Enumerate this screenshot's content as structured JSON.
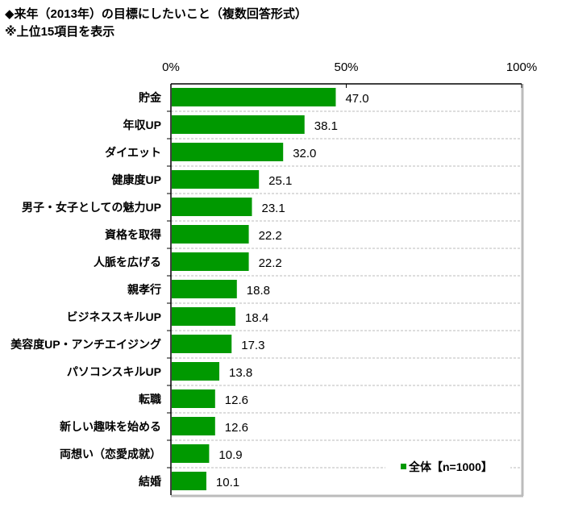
{
  "chart_data": {
    "type": "bar",
    "orientation": "horizontal",
    "title": "◆来年（2013年）の目標にしたいこと（複数回答形式）",
    "subtitle": "※上位15項目を表示",
    "xlabel": "",
    "ylabel": "",
    "xlim": [
      0,
      100
    ],
    "x_ticks": [
      "0%",
      "50%",
      "100%"
    ],
    "grid": "dashed horizontal separators",
    "legend": {
      "label": "全体【n=1000】",
      "position": "bottom-right"
    },
    "categories": [
      "貯金",
      "年収UP",
      "ダイエット",
      "健康度UP",
      "男子・女子としての魅力UP",
      "資格を取得",
      "人脈を広げる",
      "親孝行",
      "ビジネススキルUP",
      "美容度UP・アンチエイジング",
      "パソコンスキルUP",
      "転職",
      "新しい趣味を始める",
      "両想い（恋愛成就）",
      "結婚"
    ],
    "series": [
      {
        "name": "全体【n=1000】",
        "color": "#009900",
        "values": [
          47.0,
          38.1,
          32.0,
          25.1,
          23.1,
          22.2,
          22.2,
          18.8,
          18.4,
          17.3,
          13.8,
          12.6,
          12.6,
          10.9,
          10.1
        ],
        "labels": [
          "47.0",
          "38.1",
          "32.0",
          "25.1",
          "23.1",
          "22.2",
          "22.2",
          "18.8",
          "18.4",
          "17.3",
          "13.8",
          "12.6",
          "12.6",
          "10.9",
          "10.1"
        ]
      }
    ]
  }
}
